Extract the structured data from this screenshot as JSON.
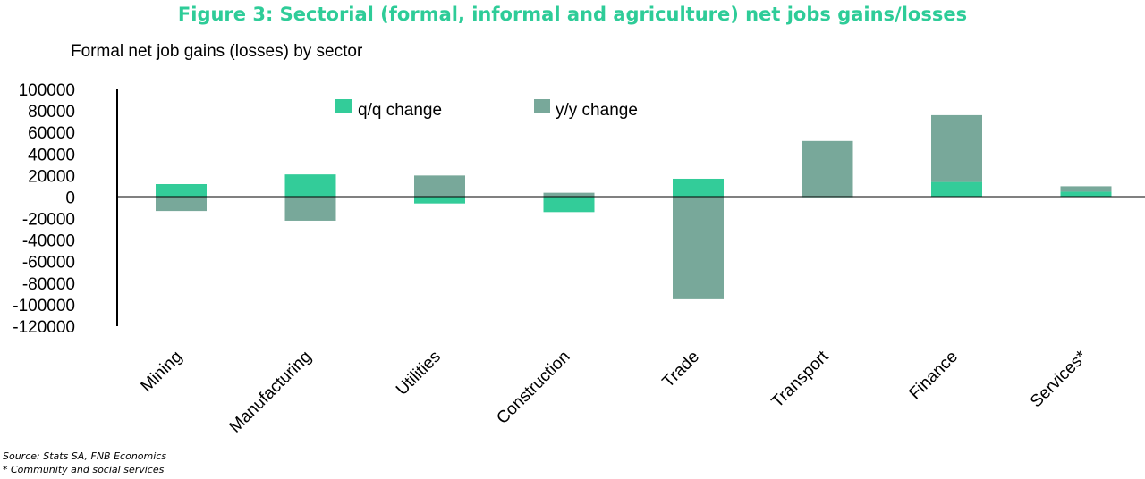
{
  "header": {
    "title": "Figure 3: Sectorial (formal, informal and agriculture) net jobs gains/losses",
    "subtitle": "Formal net job gains (losses) by sector"
  },
  "footer": {
    "source": "Source: Stats SA, FNB Economics",
    "note": "* Community and social services"
  },
  "colors": {
    "qq": "#33cc99",
    "yy": "#78a89a",
    "title": "#2ecc98"
  },
  "chart_data": {
    "type": "bar",
    "stacked": true,
    "categories": [
      "Mining",
      "Manufacturing",
      "Utilities",
      "Construction",
      "Trade",
      "Transport",
      "Finance",
      "Services*"
    ],
    "series": [
      {
        "name": "q/q change",
        "values": [
          12000,
          21000,
          -6000,
          -14000,
          17000,
          -1000,
          14000,
          5000
        ]
      },
      {
        "name": "y/y change",
        "values": [
          -13000,
          -22000,
          20000,
          4000,
          -95000,
          52000,
          62000,
          5000
        ]
      }
    ],
    "yticks": [
      100000,
      80000,
      60000,
      40000,
      20000,
      0,
      -20000,
      -40000,
      -60000,
      -80000,
      -100000,
      -120000
    ],
    "ylim": [
      -120000,
      100000
    ],
    "legend": "top",
    "grid": false
  }
}
